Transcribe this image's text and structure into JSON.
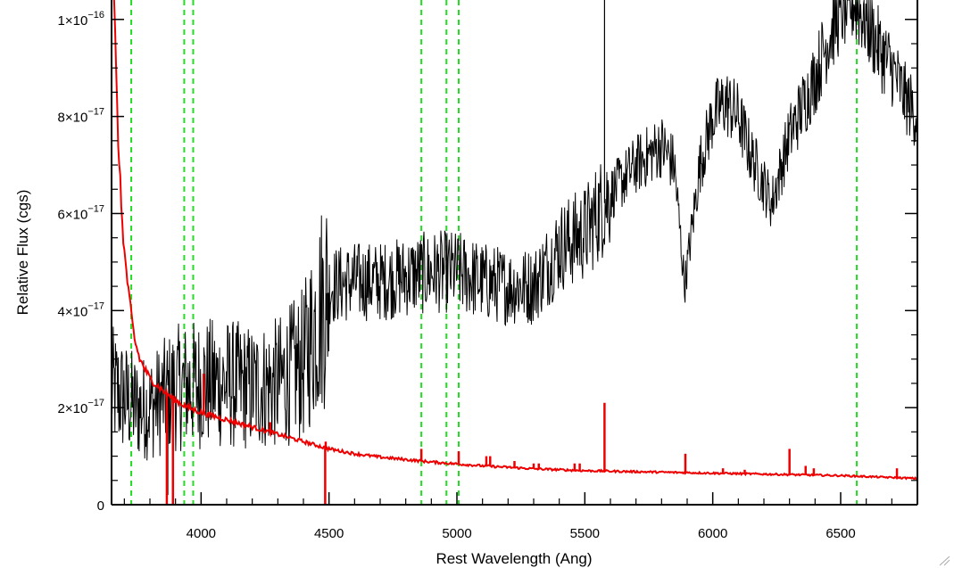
{
  "chart_data": {
    "type": "line",
    "title": "",
    "xlabel": "Rest Wavelength (Ang)",
    "ylabel": "Relative Flux (cgs)",
    "xlim": [
      3650,
      6800
    ],
    "ylim": [
      0,
      1.04e-16
    ],
    "x_ticks": [
      4000,
      4500,
      5000,
      5500,
      6000,
      6500
    ],
    "x_tick_labels": [
      "4000",
      "4500",
      "5000",
      "5500",
      "6000",
      "6500"
    ],
    "y_ticks": [
      0,
      2e-17,
      4e-17,
      6e-17,
      8e-17,
      1e-16
    ],
    "y_tick_labels": [
      {
        "mant": "0",
        "exp": ""
      },
      {
        "mant": "2×10",
        "exp": "−17"
      },
      {
        "mant": "4×10",
        "exp": "−17"
      },
      {
        "mant": "6×10",
        "exp": "−17"
      },
      {
        "mant": "8×10",
        "exp": "−17"
      },
      {
        "mant": "1×10",
        "exp": "−16"
      }
    ],
    "grid": false,
    "vertical_lines": {
      "color": "#22dd22",
      "style": "dashed",
      "x": [
        3727,
        3934,
        3969,
        4861,
        4959,
        5007,
        6563
      ]
    },
    "series": [
      {
        "color": "#000000",
        "style": "noisy",
        "x": [
          3650,
          3700,
          3750,
          3800,
          3900,
          4000,
          4100,
          4200,
          4300,
          4400,
          4450,
          4500,
          4600,
          4700,
          4800,
          4900,
          5000,
          5100,
          5200,
          5300,
          5400,
          5500,
          5600,
          5700,
          5800,
          5850,
          5890,
          5950,
          6000,
          6050,
          6100,
          6150,
          6200,
          6230,
          6300,
          6400,
          6450,
          6500,
          6550,
          6600,
          6650,
          6700,
          6750,
          6800
        ],
        "y": [
          2.4e-17,
          2.2e-17,
          2e-17,
          2e-17,
          2.4e-17,
          2.5e-17,
          2.5e-17,
          2.4e-17,
          2.5e-17,
          2.9e-17,
          3.8e-17,
          4.5e-17,
          4.6e-17,
          4.6e-17,
          4.7e-17,
          4.8e-17,
          4.8e-17,
          4.6e-17,
          4.5e-17,
          4.5e-17,
          5.3e-17,
          5.6e-17,
          6.4e-17,
          7e-17,
          7.4e-17,
          7e-17,
          4.5e-17,
          7e-17,
          8e-17,
          8.3e-17,
          8e-17,
          7.2e-17,
          6.6e-17,
          6.2e-17,
          7.6e-17,
          8.8e-17,
          9.6e-17,
          1.02e-16,
          1.04e-16,
          1e-16,
          9.4e-17,
          9e-17,
          8.4e-17,
          8e-17
        ],
        "spikes": [
          {
            "x": 5577,
            "y": 1.04e-16
          },
          {
            "x": 4490,
            "y": 3.8e-17
          },
          {
            "x": 3870,
            "y": 2e-18
          }
        ]
      },
      {
        "color": "#ee0000",
        "style": "smooth",
        "x": [
          3660,
          3670,
          3680,
          3690,
          3700,
          3720,
          3740,
          3760,
          3780,
          3800,
          3850,
          3900,
          3950,
          4000,
          4100,
          4200,
          4300,
          4400,
          4500,
          4600,
          4700,
          4800,
          4900,
          5000,
          5100,
          5200,
          5300,
          5400,
          5500,
          5600,
          5700,
          5800,
          5900,
          6000,
          6100,
          6200,
          6300,
          6400,
          6500,
          6600,
          6700,
          6800
        ],
        "y": [
          1.04e-16,
          8.4e-17,
          7e-17,
          6e-17,
          5.2e-17,
          4.2e-17,
          3.4e-17,
          3e-17,
          2.8e-17,
          2.6e-17,
          2.35e-17,
          2.15e-17,
          2e-17,
          1.9e-17,
          1.75e-17,
          1.6e-17,
          1.45e-17,
          1.3e-17,
          1.15e-17,
          1.05e-17,
          9.8e-18,
          9.3e-18,
          8.8e-18,
          8.4e-18,
          8e-18,
          7.7e-18,
          7.4e-18,
          7.2e-18,
          7e-18,
          6.9e-18,
          6.8e-18,
          6.7e-18,
          6.6e-18,
          6.5e-18,
          6.4e-18,
          6.3e-18,
          6.2e-18,
          6.1e-18,
          6e-18,
          5.8e-18,
          5.6e-18,
          5.4e-18
        ],
        "spikes": [
          {
            "x": 3866,
            "y": 0.0
          },
          {
            "x": 3890,
            "y": 0.0
          },
          {
            "x": 4010,
            "y": 2.7e-17
          },
          {
            "x": 4270,
            "y": 1.7e-17
          },
          {
            "x": 4485,
            "y": 0.0
          },
          {
            "x": 4487,
            "y": 1.3e-17
          },
          {
            "x": 4861,
            "y": 1.15e-17
          },
          {
            "x": 5007,
            "y": 1.1e-17
          },
          {
            "x": 5115,
            "y": 1e-17
          },
          {
            "x": 5130,
            "y": 1e-17
          },
          {
            "x": 5225,
            "y": 9e-18
          },
          {
            "x": 5300,
            "y": 8.5e-18
          },
          {
            "x": 5320,
            "y": 8.5e-18
          },
          {
            "x": 5460,
            "y": 8.5e-18
          },
          {
            "x": 5480,
            "y": 8.5e-18
          },
          {
            "x": 5577,
            "y": 2.1e-17
          },
          {
            "x": 5893,
            "y": 1.05e-17
          },
          {
            "x": 6040,
            "y": 7.5e-18
          },
          {
            "x": 6125,
            "y": 7.2e-18
          },
          {
            "x": 6300,
            "y": 1.15e-17
          },
          {
            "x": 6363,
            "y": 8e-18
          },
          {
            "x": 6395,
            "y": 7.5e-18
          },
          {
            "x": 6720,
            "y": 7.5e-18
          }
        ]
      }
    ]
  }
}
